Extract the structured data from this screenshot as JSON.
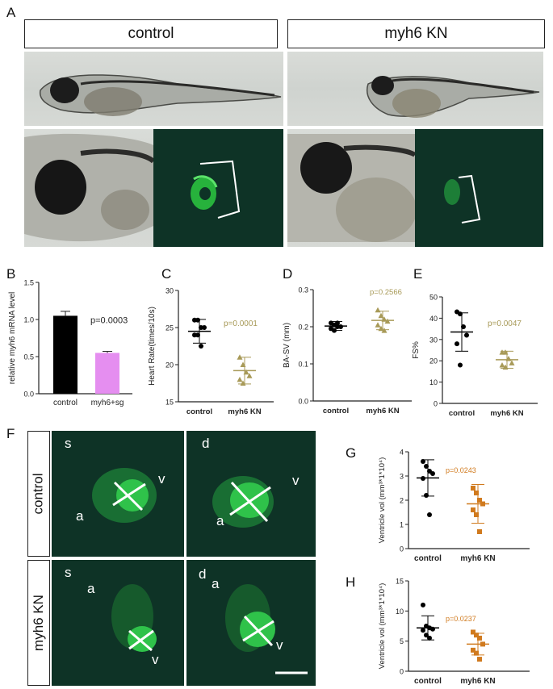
{
  "panelA": {
    "letter": "A",
    "header_left": "control",
    "header_right": "myh6 KN"
  },
  "panelB": {
    "letter": "B",
    "ylabel": "relative myh6 mRNA level",
    "pvalue": "p=0.0003",
    "categories": [
      "control",
      "myh6+sg"
    ],
    "values": [
      1.05,
      0.55
    ],
    "errors": [
      0.06,
      0.02
    ],
    "colors": [
      "#000000",
      "#e58ef0"
    ],
    "ylim": [
      0,
      1.5
    ],
    "yticks": [
      "0.0",
      "0.5",
      "1.0",
      "1.5"
    ]
  },
  "panelC": {
    "letter": "C",
    "ylabel": "Heart Rate(times/10s)",
    "pvalue": "p=0.0001",
    "categories": [
      "control",
      "myh6 KN"
    ],
    "ylim": [
      15,
      30
    ],
    "yticks": [
      "15",
      "20",
      "25",
      "30"
    ],
    "groups": [
      {
        "mean": 24.5,
        "sd": 1.6,
        "points": [
          26,
          26,
          25,
          25,
          24,
          24,
          22.5
        ],
        "color": "#000000",
        "shape": "circle"
      },
      {
        "mean": 19.2,
        "sd": 1.8,
        "points": [
          21,
          20,
          19,
          18.5,
          18,
          17.5
        ],
        "color": "#a89a58",
        "shape": "triangle"
      }
    ],
    "pcolor": "#a89a58"
  },
  "panelD": {
    "letter": "D",
    "ylabel": "BA-SV (mm)",
    "pvalue": "p=0.2566",
    "categories": [
      "control",
      "myh6 KN"
    ],
    "ylim": [
      0,
      0.3
    ],
    "yticks": [
      "0.0",
      "0.1",
      "0.2",
      "0.3"
    ],
    "groups": [
      {
        "mean": 0.202,
        "sd": 0.012,
        "points": [
          0.21,
          0.205,
          0.2,
          0.2,
          0.195,
          0.19,
          0.21
        ],
        "color": "#000000",
        "shape": "circle"
      },
      {
        "mean": 0.217,
        "sd": 0.025,
        "points": [
          0.245,
          0.23,
          0.22,
          0.215,
          0.205,
          0.195,
          0.19
        ],
        "color": "#a89a58",
        "shape": "triangle"
      }
    ],
    "pcolor": "#a89a58"
  },
  "panelE": {
    "letter": "E",
    "ylabel": "FS%",
    "pvalue": "p=0.0047",
    "categories": [
      "control",
      "myh6 KN"
    ],
    "ylim": [
      0,
      50
    ],
    "yticks": [
      "0",
      "10",
      "20",
      "30",
      "40",
      "50"
    ],
    "groups": [
      {
        "mean": 33.5,
        "sd": 9,
        "points": [
          43,
          42,
          36,
          32,
          28,
          18
        ],
        "color": "#000000",
        "shape": "circle"
      },
      {
        "mean": 20.5,
        "sd": 4,
        "points": [
          24,
          24,
          21,
          19,
          18,
          17
        ],
        "color": "#a89a58",
        "shape": "triangle"
      }
    ],
    "pcolor": "#a89a58"
  },
  "panelF": {
    "letter": "F",
    "row_labels": [
      "control",
      "myh6 KN"
    ],
    "tiles": [
      {
        "phase": "s",
        "a": "a",
        "v": "v"
      },
      {
        "phase": "d",
        "a": "a",
        "v": "v"
      },
      {
        "phase": "s",
        "a": "a",
        "v": "v"
      },
      {
        "phase": "d",
        "a": "a",
        "v": "v"
      }
    ]
  },
  "panelG": {
    "letter": "G",
    "ylabel": "Ventricle vol (mm³*1*10⁴)",
    "pvalue": "p=0.0243",
    "categories": [
      "control",
      "myh6 KN"
    ],
    "ylim": [
      0,
      4
    ],
    "yticks": [
      "0",
      "1",
      "2",
      "3",
      "4"
    ],
    "groups": [
      {
        "mean": 2.92,
        "sd": 0.75,
        "points": [
          3.6,
          3.4,
          3.2,
          3.1,
          2.9,
          2.2,
          1.4
        ],
        "color": "#000000",
        "shape": "circle"
      },
      {
        "mean": 1.85,
        "sd": 0.8,
        "points": [
          2.5,
          2.3,
          2.0,
          1.85,
          1.6,
          1.4,
          0.7
        ],
        "color": "#d07a1e",
        "shape": "square"
      }
    ],
    "pcolor": "#d07a1e"
  },
  "panelH": {
    "letter": "H",
    "ylabel": "Ventricle vol (mm³*1*10⁴)",
    "pvalue": "p=0.0237",
    "categories": [
      "control",
      "myh6 KN"
    ],
    "ylim": [
      0,
      15
    ],
    "yticks": [
      "0",
      "5",
      "10",
      "15"
    ],
    "groups": [
      {
        "mean": 7.2,
        "sd": 2.0,
        "points": [
          11,
          7.5,
          7.2,
          7,
          6.8,
          6,
          5.5
        ],
        "color": "#000000",
        "shape": "circle"
      },
      {
        "mean": 4.5,
        "sd": 1.8,
        "points": [
          6.5,
          6,
          5.5,
          4.5,
          3.5,
          3,
          2
        ],
        "color": "#d07a1e",
        "shape": "square"
      }
    ],
    "pcolor": "#d07a1e"
  }
}
